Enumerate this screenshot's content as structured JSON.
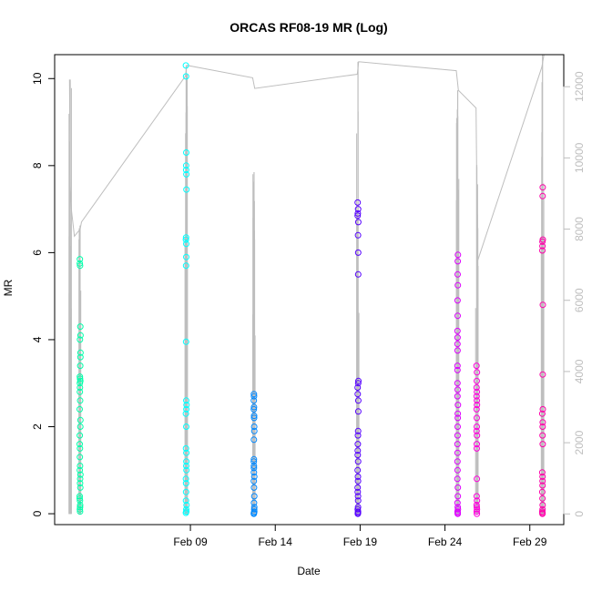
{
  "chart_data": {
    "type": "scatter",
    "title": "ORCAS RF08-19 MR (Log)",
    "xlabel": "Date",
    "ylabel": "MR",
    "x_axis": {
      "type": "date",
      "range": [
        "2016-02-01T00:00",
        "2016-03-02T00:00"
      ],
      "ticks": [
        {
          "value": "2016-02-09",
          "label": "Feb 09"
        },
        {
          "value": "2016-02-14",
          "label": "Feb 14"
        },
        {
          "value": "2016-02-19",
          "label": "Feb 19"
        },
        {
          "value": "2016-02-24",
          "label": "Feb 24"
        },
        {
          "value": "2016-02-29",
          "label": "Feb 29"
        }
      ]
    },
    "y_axis_left": {
      "range": [
        -0.25,
        10.55
      ],
      "ticks": [
        0,
        2,
        4,
        6,
        8,
        10
      ]
    },
    "y_axis_right": {
      "range": [
        -300,
        12900
      ],
      "ticks": [
        0,
        2000,
        4000,
        6000,
        8000,
        10000,
        12000
      ],
      "color": "#bebebe"
    },
    "grid": false,
    "flights": [
      {
        "center": "2016-02-02T12:00",
        "spread": 0.3,
        "color": "#00ffaa",
        "mr": [
          0.05,
          0.1,
          0.15,
          0.2,
          0.3,
          0.35,
          0.4,
          0.6,
          0.7,
          0.8,
          0.9,
          1.0,
          1.1,
          1.3,
          1.5,
          1.6,
          1.8,
          2.0,
          2.15,
          2.4,
          2.6,
          2.8,
          2.9,
          3.0,
          3.05,
          3.1,
          3.15,
          3.4,
          3.6,
          3.7,
          4.0,
          4.1,
          4.3,
          5.7,
          5.75,
          5.85
        ]
      },
      {
        "center": "2016-02-08T18:00",
        "spread": 0.25,
        "color": "#00ffff",
        "mr": [
          0.02,
          0.05,
          0.1,
          0.2,
          0.3,
          0.5,
          0.7,
          0.8,
          1.0,
          1.1,
          1.2,
          1.4,
          1.5,
          2.0,
          2.3,
          2.4,
          2.5,
          2.6,
          3.95,
          5.7,
          5.9,
          6.2,
          6.3,
          6.35,
          7.45,
          7.8,
          7.9,
          8.0,
          8.3,
          10.05,
          10.3
        ]
      },
      {
        "center": "2016-02-12T18:00",
        "spread": 0.2,
        "color": "#0088ff",
        "mr": [
          0.0,
          0.02,
          0.05,
          0.1,
          0.15,
          0.25,
          0.4,
          0.6,
          0.75,
          0.85,
          0.95,
          1.05,
          1.1,
          1.2,
          1.25,
          1.7,
          1.9,
          2.0,
          2.2,
          2.25,
          2.4,
          2.45,
          2.6,
          2.7,
          2.75
        ]
      },
      {
        "center": "2016-02-18T21:00",
        "spread": 0.25,
        "color": "#5500ff",
        "mr": [
          0.0,
          0.02,
          0.05,
          0.1,
          0.15,
          0.3,
          0.4,
          0.5,
          0.6,
          0.75,
          0.85,
          1.0,
          1.2,
          1.35,
          1.45,
          1.6,
          1.8,
          1.9,
          2.35,
          2.6,
          2.75,
          2.9,
          3.0,
          3.05,
          5.5,
          6.0,
          6.4,
          6.7,
          6.85,
          6.9,
          7.0,
          7.15
        ]
      },
      {
        "center": "2016-02-24T18:00",
        "spread": 0.2,
        "color": "#dd00ff",
        "mr": [
          0.0,
          0.02,
          0.05,
          0.1,
          0.15,
          0.25,
          0.4,
          0.6,
          0.8,
          1.0,
          1.2,
          1.4,
          1.6,
          1.8,
          2.0,
          2.2,
          2.3,
          2.5,
          2.7,
          2.85,
          3.0,
          3.3,
          3.4,
          3.75,
          3.9,
          4.05,
          4.2,
          4.55,
          4.9,
          5.25,
          5.5,
          5.8,
          5.95
        ]
      },
      {
        "center": "2016-02-25T21:00",
        "spread": 0.2,
        "color": "#ff00dd",
        "mr": [
          0.0,
          0.05,
          0.1,
          0.15,
          0.2,
          0.3,
          0.4,
          0.8,
          1.5,
          1.6,
          1.8,
          1.9,
          2.0,
          2.2,
          2.4,
          2.5,
          2.6,
          2.7,
          2.8,
          2.9,
          3.05,
          3.25,
          3.4
        ]
      },
      {
        "center": "2016-02-29T18:00",
        "spread": 0.2,
        "color": "#ff00aa",
        "mr": [
          0.0,
          0.02,
          0.05,
          0.1,
          0.2,
          0.35,
          0.5,
          0.65,
          0.75,
          0.85,
          0.95,
          1.6,
          1.8,
          2.0,
          2.1,
          2.3,
          2.4,
          3.2,
          4.8,
          6.05,
          6.15,
          6.25,
          6.3,
          7.3,
          7.5
        ]
      }
    ],
    "altitude_trace": {
      "color": "#bebebe",
      "points": [
        [
          "2016-02-01T21:00",
          12200
        ],
        [
          "2016-02-01T22:00",
          9200
        ],
        [
          "2016-02-02T00:00",
          8500
        ],
        [
          "2016-02-02T04:00",
          7800
        ],
        [
          "2016-02-02T12:00",
          8000
        ],
        [
          "2016-02-02T14:00",
          8200
        ],
        [
          "2016-02-08T17:00",
          12300
        ],
        [
          "2016-02-08T19:00",
          12600
        ],
        [
          "2016-02-12T16:00",
          12250
        ],
        [
          "2016-02-12T19:00",
          11950
        ],
        [
          "2016-02-18T20:00",
          12350
        ],
        [
          "2016-02-18T22:00",
          12700
        ],
        [
          "2016-02-24T16:00",
          12450
        ],
        [
          "2016-02-24T19:00",
          11900
        ],
        [
          "2016-02-25T20:00",
          11400
        ],
        [
          "2016-02-25T22:00",
          7100
        ],
        [
          "2016-02-29T17:00",
          12550
        ],
        [
          "2016-02-29T20:00",
          12900
        ]
      ],
      "spikes": [
        {
          "center": "2016-02-01T22:00",
          "min": 0,
          "max": 12200
        },
        {
          "center": "2016-02-02T12:00",
          "min": 0,
          "max": 8100
        },
        {
          "center": "2016-02-08T18:00",
          "min": 0,
          "max": 12600
        },
        {
          "center": "2016-02-12T18:00",
          "min": 0,
          "max": 9600
        },
        {
          "center": "2016-02-18T21:00",
          "min": 0,
          "max": 12700
        },
        {
          "center": "2016-02-24T18:00",
          "min": 0,
          "max": 11900
        },
        {
          "center": "2016-02-25T21:00",
          "min": 0,
          "max": 9800
        },
        {
          "center": "2016-02-29T18:00",
          "min": 0,
          "max": 12900
        }
      ]
    }
  }
}
